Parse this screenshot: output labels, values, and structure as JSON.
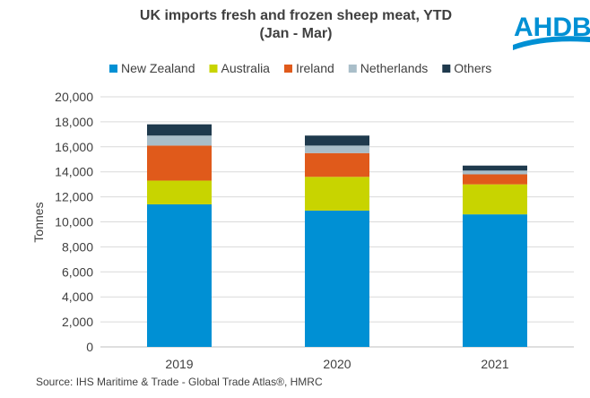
{
  "title_line1": "UK imports fresh and frozen sheep meat, YTD",
  "title_line2": "(Jan - Mar)",
  "logo_text": "AHDB",
  "source": "Source: IHS Maritime & Trade - Global Trade Atlas®, HMRC",
  "chart_data": {
    "type": "bar",
    "stacked": true,
    "categories": [
      "2019",
      "2020",
      "2021"
    ],
    "ylabel": "Tonnes",
    "ylim": [
      0,
      20000
    ],
    "yticks": [
      0,
      2000,
      4000,
      6000,
      8000,
      10000,
      12000,
      14000,
      16000,
      18000,
      20000
    ],
    "ytick_labels": [
      "0",
      "2,000",
      "4,000",
      "6,000",
      "8,000",
      "10,000",
      "12,000",
      "14,000",
      "16,000",
      "18,000",
      "20,000"
    ],
    "grid": true,
    "legend_position": "top",
    "series": [
      {
        "name": "New Zealand",
        "color": "#0090D4",
        "values": [
          11400,
          10900,
          10600
        ]
      },
      {
        "name": "Australia",
        "color": "#C8D400",
        "values": [
          1900,
          2700,
          2400
        ]
      },
      {
        "name": "Ireland",
        "color": "#E05A1B",
        "values": [
          2800,
          1900,
          800
        ]
      },
      {
        "name": "Netherlands",
        "color": "#A9BEC9",
        "values": [
          800,
          600,
          300
        ]
      },
      {
        "name": "Others",
        "color": "#1F3A4D",
        "values": [
          900,
          800,
          400
        ]
      }
    ]
  }
}
